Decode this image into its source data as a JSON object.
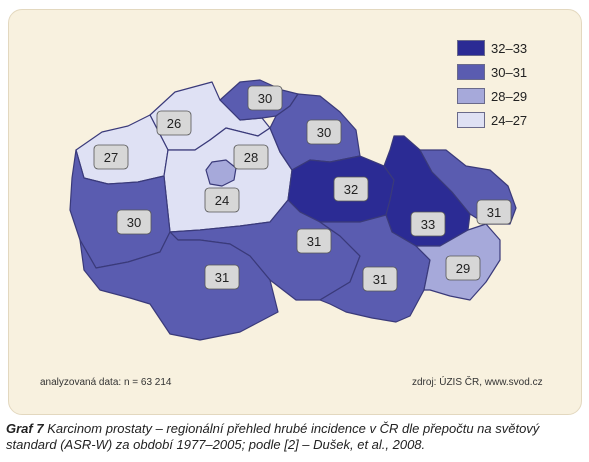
{
  "legend": [
    {
      "label": "32–33",
      "color": "#2b2b94"
    },
    {
      "label": "30–31",
      "color": "#5a5cb0"
    },
    {
      "label": "28–29",
      "color": "#a6a9da"
    },
    {
      "label": "24–27",
      "color": "#dfe1f4"
    }
  ],
  "regions": [
    {
      "value": "26"
    },
    {
      "value": "30"
    },
    {
      "value": "27"
    },
    {
      "value": "28"
    },
    {
      "value": "30"
    },
    {
      "value": "24"
    },
    {
      "value": "32"
    },
    {
      "value": "30"
    },
    {
      "value": "33"
    },
    {
      "value": "31"
    },
    {
      "value": "31"
    },
    {
      "value": "31"
    },
    {
      "value": "31"
    },
    {
      "value": "29"
    }
  ],
  "footer": {
    "left": "analyzovaná data: n = 63 214",
    "right": "zdroj: ÚZIS ČR, www.svod.cz"
  },
  "caption": {
    "label": "Graf 7",
    "text": "Karcinom prostaty – regionální přehled hrubé incidence v ČR dle přepočtu na světový standard (ASR-W) za období 1977–2005; podle [2] – Dušek, et al., 2008."
  }
}
